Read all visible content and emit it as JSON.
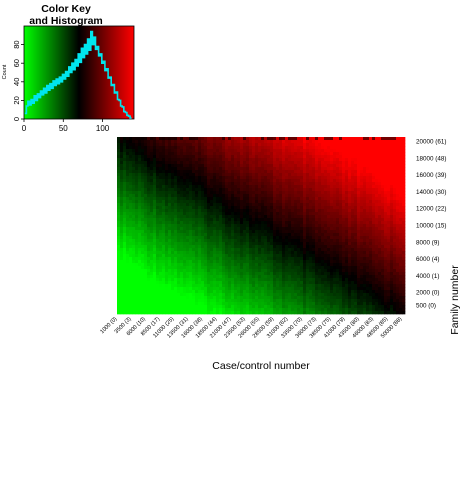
{
  "chart_data": [
    {
      "type": "histogram",
      "title_lines": [
        "Color Key",
        "and Histogram"
      ],
      "xlabel": "",
      "ylabel": "Count",
      "xlim": [
        0,
        140
      ],
      "ylim": [
        0,
        100
      ],
      "x_ticks": [
        "0",
        "50",
        "100"
      ],
      "y_ticks": [
        "0",
        "20",
        "40",
        "60",
        "80"
      ],
      "color_scale": [
        "#00ff00",
        "#000000",
        "#ff0000"
      ],
      "bins": [
        [
          2,
          6
        ],
        [
          4,
          14
        ],
        [
          6,
          19
        ],
        [
          8,
          15
        ],
        [
          10,
          21
        ],
        [
          12,
          17
        ],
        [
          14,
          25
        ],
        [
          16,
          20
        ],
        [
          18,
          27
        ],
        [
          20,
          23
        ],
        [
          22,
          30
        ],
        [
          24,
          26
        ],
        [
          26,
          33
        ],
        [
          28,
          28
        ],
        [
          30,
          36
        ],
        [
          32,
          31
        ],
        [
          34,
          38
        ],
        [
          36,
          33
        ],
        [
          38,
          41
        ],
        [
          40,
          36
        ],
        [
          42,
          43
        ],
        [
          44,
          38
        ],
        [
          46,
          45
        ],
        [
          48,
          40
        ],
        [
          50,
          48
        ],
        [
          52,
          43
        ],
        [
          54,
          51
        ],
        [
          56,
          46
        ],
        [
          58,
          56
        ],
        [
          60,
          50
        ],
        [
          62,
          60
        ],
        [
          64,
          53
        ],
        [
          66,
          64
        ],
        [
          68,
          57
        ],
        [
          70,
          70
        ],
        [
          72,
          61
        ],
        [
          74,
          76
        ],
        [
          76,
          66
        ],
        [
          78,
          80
        ],
        [
          80,
          70
        ],
        [
          82,
          86
        ],
        [
          84,
          74
        ],
        [
          86,
          94
        ],
        [
          88,
          80
        ],
        [
          90,
          88
        ],
        [
          92,
          75
        ],
        [
          94,
          78
        ],
        [
          96,
          68
        ],
        [
          98,
          70
        ],
        [
          100,
          60
        ],
        [
          102,
          62
        ],
        [
          104,
          52
        ],
        [
          106,
          54
        ],
        [
          108,
          44
        ],
        [
          110,
          45
        ],
        [
          112,
          36
        ],
        [
          114,
          37
        ],
        [
          116,
          28
        ],
        [
          118,
          29
        ],
        [
          120,
          21
        ],
        [
          122,
          20
        ],
        [
          124,
          14
        ],
        [
          126,
          13
        ],
        [
          128,
          8
        ],
        [
          130,
          7
        ],
        [
          132,
          4
        ],
        [
          134,
          3
        ],
        [
          136,
          1
        ]
      ]
    },
    {
      "type": "heatmap",
      "xlabel": "Case/control number",
      "ylabel": "Family number",
      "x_tick_labels": [
        "1000 (0)",
        "3500 (3)",
        "6000 (10)",
        "8500 (17)",
        "11000 (25)",
        "13500 (31)",
        "16000 (38)",
        "18500 (44)",
        "21000 (47)",
        "23500 (53)",
        "26000 (55)",
        "28500 (59)",
        "31000 (62)",
        "33500 (70)",
        "36000 (73)",
        "38500 (75)",
        "41000 (79)",
        "43500 (80)",
        "46000 (83)",
        "48500 (85)",
        "50000 (88)"
      ],
      "y_tick_labels": [
        "500 (0)",
        "2000 (0)",
        "4000 (1)",
        "6000 (4)",
        "8000 (9)",
        "10000 (15)",
        "12000 (22)",
        "14000 (30)",
        "16000 (39)",
        "18000 (48)",
        "20000 (61)"
      ],
      "y_values": [
        500,
        2000,
        4000,
        6000,
        8000,
        10000,
        12000,
        14000,
        16000,
        18000,
        20000
      ],
      "color_scale": [
        "#00ff00",
        "#000000",
        "#ff0000"
      ],
      "pattern": "green at bottom-left, black along the diagonal, red at top-right"
    }
  ]
}
